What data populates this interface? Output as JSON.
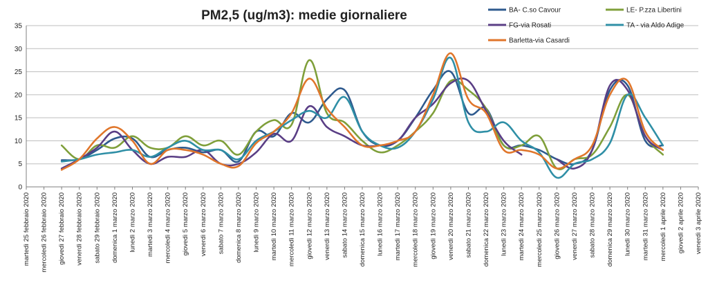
{
  "chart_data": {
    "type": "line",
    "title": "PM2,5 (ug/m3): medie giornaliere",
    "xlabel": "",
    "ylabel": "",
    "ylim": [
      0,
      35
    ],
    "yticks": [
      0,
      5,
      10,
      15,
      20,
      25,
      30,
      35
    ],
    "grid": true,
    "legend_position": "top-right",
    "categories": [
      "martedì 25 febbraio 2020",
      "mercoledì 26 febbraio 2020",
      "giovedì 27 febbraio 2020",
      "venerdì 28 febbraio 2020",
      "sabato 29 febbraio 2020",
      "domenica 1 marzo 2020",
      "lunedì 2 marzo 2020",
      "martedì 3 marzo 2020",
      "mercoledì 4 marzo 2020",
      "giovedì 5 marzo 2020",
      "venerdì 6 marzo 2020",
      "sabato 7 marzo 2020",
      "domenica 8 marzo 2020",
      "lunedì 9 marzo 2020",
      "martedì 10 marzo 2020",
      "mercoledì 11 marzo 2020",
      "giovedì 12 marzo 2020",
      "venerdì 13 marzo 2020",
      "sabato 14 marzo 2020",
      "domenica 15 marzo 2020",
      "lunedì 16 marzo 2020",
      "martedì 17 marzo 2020",
      "mercoledì 18 marzo 2020",
      "giovedì 19 marzo 2020",
      "venerdì 20 marzo 2020",
      "sabato 21 marzo 2020",
      "domenica 22 marzo 2020",
      "lunedì 23 marzo 2020",
      "martedì 24 marzo 2020",
      "mercoledì 25 marzo 2020",
      "giovedì 26 marzo 2020",
      "venerdì 27 marzo 2020",
      "sabato 28 marzo 2020",
      "domenica 29 marzo 2020",
      "lunedì 30 marzo 2020",
      "martedì 31 marzo 2020",
      "mercoledì 1 aprile 2020",
      "giovedì 2 aprile 2020",
      "venerdì 3 aprile 2020"
    ],
    "series": [
      {
        "name": "BA- C.so Cavour",
        "color": "#2e5a8e",
        "values": [
          null,
          null,
          5.8,
          6,
          8,
          10.5,
          10.5,
          6.5,
          8,
          8.5,
          7.5,
          8,
          5.5,
          12,
          11,
          16,
          14,
          19,
          21,
          12,
          9,
          10,
          15,
          21,
          25,
          16,
          17,
          9,
          9,
          8,
          6,
          5,
          8,
          21,
          22,
          10,
          9,
          null,
          null
        ]
      },
      {
        "name": "LE- P.zza Libertini",
        "color": "#7f9f3a",
        "values": [
          null,
          null,
          9,
          6,
          9,
          8.5,
          11,
          8.5,
          8.5,
          11,
          9,
          10,
          7,
          12,
          14.5,
          13.5,
          27.5,
          16,
          14,
          10,
          7.5,
          9,
          12,
          16,
          23,
          21,
          17,
          9,
          9,
          11,
          4,
          6,
          7,
          13,
          20,
          11,
          7,
          null,
          null
        ]
      },
      {
        "name": "FG-via Rosati",
        "color": "#5a3e85",
        "values": [
          null,
          null,
          4,
          6,
          8.5,
          12,
          8,
          5,
          6.5,
          6.5,
          8,
          5,
          5,
          7.5,
          11.5,
          10,
          17.5,
          13,
          11,
          9,
          9,
          10,
          15,
          18,
          22.5,
          23,
          16.5,
          10,
          7,
          null,
          6,
          4,
          8,
          22,
          21,
          11,
          8,
          null,
          null
        ]
      },
      {
        "name": "TA - via Aldo Adige",
        "color": "#2f8fa6",
        "values": [
          null,
          null,
          5.5,
          6,
          7,
          7.5,
          8,
          6.5,
          8.5,
          10,
          8,
          8,
          6,
          10,
          12,
          14.5,
          16.5,
          15,
          19.5,
          12,
          9,
          8.5,
          12,
          19,
          28,
          14,
          12,
          14,
          10,
          7.5,
          2,
          5,
          6,
          9.5,
          20,
          15,
          9,
          null,
          null
        ]
      },
      {
        "name": "Barletta-via Casardi",
        "color": "#e0762b",
        "values": [
          null,
          null,
          3.7,
          6,
          10.5,
          13,
          10,
          5,
          8,
          8,
          7,
          5,
          4.5,
          9.5,
          12,
          16,
          23.5,
          17,
          13,
          9,
          9,
          10,
          12,
          20,
          29,
          19,
          16,
          8,
          8,
          7,
          4,
          6,
          9,
          20,
          23,
          12,
          8,
          null,
          null
        ]
      }
    ]
  }
}
